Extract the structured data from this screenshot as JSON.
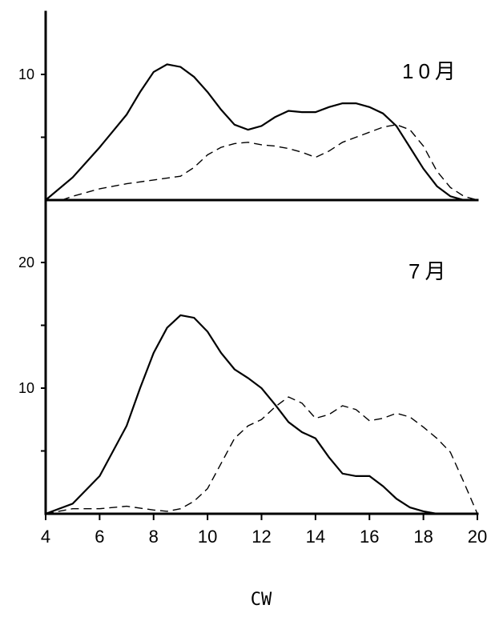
{
  "chart_data": [
    {
      "type": "line",
      "title": "10月",
      "xlabel": "CW",
      "ylabel": "",
      "xlim": [
        4,
        20
      ],
      "ylim": [
        0,
        10
      ],
      "y_ticks": [
        10
      ],
      "grid": false,
      "series": [
        {
          "style": "solid",
          "x": [
            4,
            5,
            6,
            7,
            7.5,
            8,
            8.5,
            9,
            9.5,
            10,
            10.5,
            11,
            11.5,
            12,
            12.5,
            13,
            13.5,
            14,
            14.5,
            15,
            15.5,
            16,
            16.5,
            17,
            17.5,
            18,
            18.5,
            19,
            19.5,
            20
          ],
          "values": [
            0,
            1.8,
            4.2,
            6.8,
            8.6,
            10.2,
            10.8,
            10.6,
            9.8,
            8.6,
            7.2,
            6.0,
            5.6,
            5.9,
            6.6,
            7.1,
            7.0,
            7.0,
            7.4,
            7.7,
            7.7,
            7.4,
            6.9,
            5.9,
            4.2,
            2.5,
            1.1,
            0.3,
            0,
            0
          ]
        },
        {
          "style": "dashed",
          "x": [
            4.6,
            5,
            6,
            7,
            8,
            9,
            9.5,
            10,
            10.5,
            11,
            11.5,
            12,
            12.5,
            13,
            13.5,
            14,
            14.5,
            15,
            15.5,
            16,
            16.5,
            17,
            17.5,
            18,
            18.5,
            19,
            19.5,
            20
          ],
          "values": [
            0,
            0.3,
            0.9,
            1.3,
            1.6,
            1.9,
            2.6,
            3.6,
            4.2,
            4.5,
            4.6,
            4.4,
            4.3,
            4.1,
            3.8,
            3.4,
            3.9,
            4.6,
            5.0,
            5.4,
            5.8,
            6.0,
            5.6,
            4.3,
            2.3,
            1.0,
            0.3,
            0
          ]
        }
      ]
    },
    {
      "type": "line",
      "title": "7月",
      "xlabel": "CW",
      "ylabel": "",
      "xlim": [
        4,
        20
      ],
      "ylim": [
        0,
        25
      ],
      "y_ticks": [
        10,
        20
      ],
      "x_ticks": [
        4,
        6,
        8,
        10,
        12,
        14,
        16,
        18,
        20
      ],
      "grid": false,
      "series": [
        {
          "style": "solid",
          "x": [
            4,
            5,
            6,
            7,
            7.5,
            8,
            8.5,
            9,
            9.5,
            10,
            10.5,
            11,
            11.5,
            12,
            12.5,
            13,
            13.5,
            14,
            14.5,
            15,
            15.5,
            16,
            16.5,
            17,
            17.5,
            18,
            18.5,
            19
          ],
          "values": [
            0,
            0.8,
            3.0,
            7.0,
            10.0,
            12.8,
            14.8,
            15.8,
            15.6,
            14.5,
            12.8,
            11.5,
            10.8,
            10.0,
            8.7,
            7.3,
            6.5,
            6.0,
            4.5,
            3.2,
            3.0,
            3.0,
            2.2,
            1.2,
            0.5,
            0.2,
            0,
            0
          ]
        },
        {
          "style": "dashed",
          "x": [
            4,
            5,
            6,
            7,
            8,
            8.5,
            9,
            9.5,
            10,
            10.5,
            11,
            11.5,
            12,
            12.5,
            13,
            13.5,
            14,
            14.5,
            15,
            15.5,
            16,
            16.5,
            17,
            17.5,
            18,
            18.5,
            19,
            19.5,
            20
          ],
          "values": [
            0,
            0.4,
            0.4,
            0.6,
            0.3,
            0.2,
            0.4,
            1.0,
            2.0,
            4.0,
            6.0,
            7.0,
            7.5,
            8.5,
            9.3,
            8.8,
            7.6,
            7.9,
            8.6,
            8.3,
            7.4,
            7.6,
            8.0,
            7.7,
            6.9,
            6.0,
            4.9,
            2.5,
            0
          ]
        }
      ]
    }
  ]
}
